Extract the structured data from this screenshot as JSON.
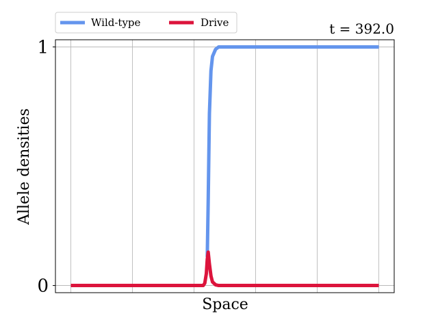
{
  "chart_data": {
    "type": "line",
    "title": "",
    "annotation": "t = 392.0",
    "xlabel": "Space",
    "ylabel": "Allele densities",
    "ylim": [
      -0.03,
      1.03
    ],
    "xlim": [
      -0.05,
      1.05
    ],
    "y_ticks": [
      0,
      1
    ],
    "y_tick_labels": [
      "0",
      "1"
    ],
    "x_tick_labels": [],
    "x_grid_count": 6,
    "grid": true,
    "legend_position": "top-left-outside",
    "legend_layout": "horizontal",
    "series": [
      {
        "name": "Wild-type",
        "color": "#6495ED",
        "x": [
          0.0,
          0.1,
          0.2,
          0.3,
          0.4,
          0.43,
          0.435,
          0.44,
          0.443,
          0.446,
          0.45,
          0.455,
          0.46,
          0.47,
          0.48,
          0.5,
          0.6,
          0.7,
          0.8,
          0.9,
          1.0
        ],
        "y": [
          null,
          null,
          null,
          null,
          null,
          null,
          null,
          null,
          0.12,
          0.35,
          0.72,
          0.9,
          0.96,
          0.99,
          1.0,
          1.0,
          1.0,
          1.0,
          1.0,
          1.0,
          1.0
        ]
      },
      {
        "name": "Drive",
        "color": "#DC143C",
        "x": [
          0.0,
          0.1,
          0.2,
          0.3,
          0.4,
          0.43,
          0.435,
          0.44,
          0.443,
          0.446,
          0.45,
          0.455,
          0.46,
          0.47,
          0.48,
          0.5,
          0.6,
          0.7,
          0.8,
          0.9,
          1.0
        ],
        "y": [
          0.0,
          0.0,
          0.0,
          0.0,
          0.0,
          0.0,
          0.01,
          0.05,
          0.11,
          0.14,
          0.09,
          0.04,
          0.015,
          0.003,
          0.0,
          0.0,
          0.0,
          0.0,
          0.0,
          0.0,
          0.0
        ]
      }
    ]
  }
}
